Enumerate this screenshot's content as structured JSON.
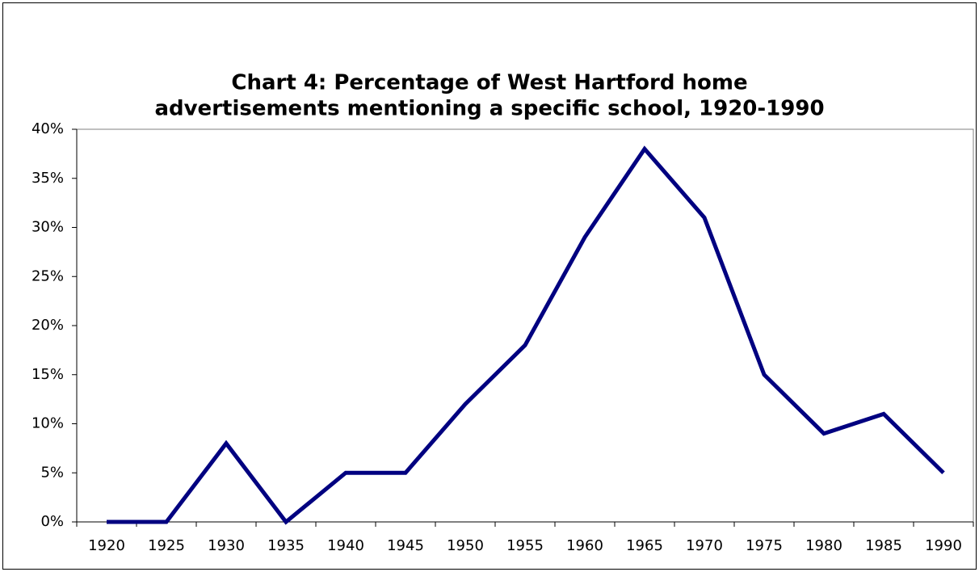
{
  "chart_data": {
    "type": "line",
    "title": [
      "Chart 4: Percentage of West Hartford home",
      "advertisements mentioning a specific school, 1920-1990"
    ],
    "categories": [
      "1920",
      "1925",
      "1930",
      "1935",
      "1940",
      "1945",
      "1950",
      "1955",
      "1960",
      "1965",
      "1970",
      "1975",
      "1980",
      "1985",
      "1990"
    ],
    "values": [
      0,
      0,
      8,
      0,
      5,
      5,
      12,
      18,
      29,
      38,
      31,
      15,
      9,
      11,
      5
    ],
    "color": "#000080",
    "ylim": [
      0,
      40
    ],
    "yticks": [
      {
        "value": 0,
        "label": "0%"
      },
      {
        "value": 5,
        "label": "5%"
      },
      {
        "value": 10,
        "label": "10%"
      },
      {
        "value": 15,
        "label": "15%"
      },
      {
        "value": 20,
        "label": "20%"
      },
      {
        "value": 25,
        "label": "25%"
      },
      {
        "value": 30,
        "label": "30%"
      },
      {
        "value": 35,
        "label": "35%"
      },
      {
        "value": 40,
        "label": "40%"
      }
    ],
    "grid": false
  }
}
